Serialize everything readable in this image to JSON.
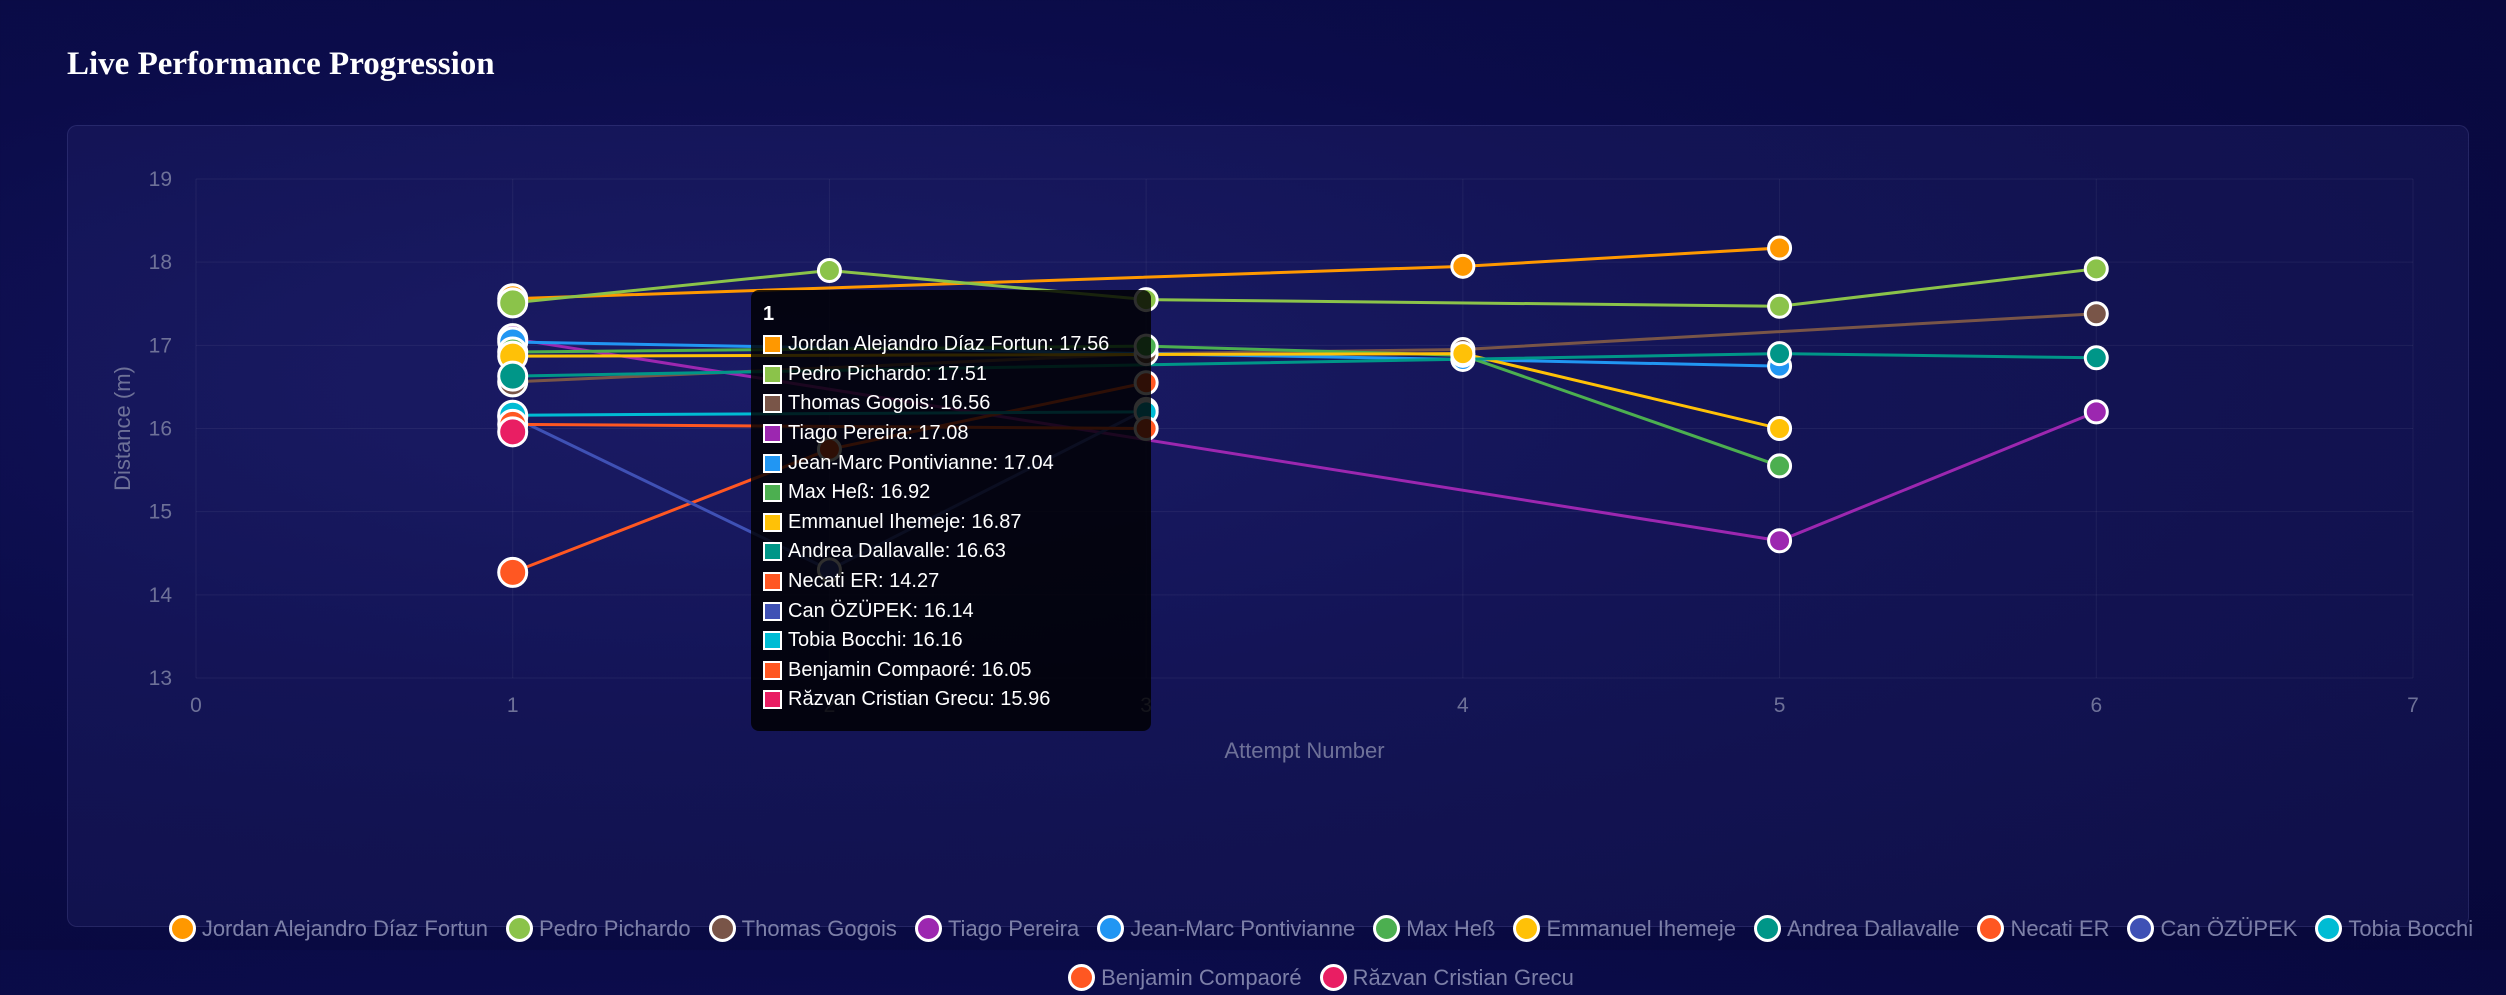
{
  "page": {
    "title": "Live Performance Progression"
  },
  "chart_data": {
    "type": "line",
    "title": "Live Performance Progression",
    "xlabel": "Attempt Number",
    "ylabel": "Distance (m)",
    "xlim": [
      0,
      7
    ],
    "ylim": [
      13,
      19
    ],
    "x_ticks": [
      0,
      1,
      2,
      3,
      4,
      5,
      6,
      7
    ],
    "y_ticks": [
      13,
      14,
      15,
      16,
      17,
      18,
      19
    ],
    "grid": true,
    "legend_position": "bottom",
    "series": [
      {
        "name": "Jordan Alejandro Díaz Fortun",
        "color": "#ff9800",
        "points": [
          [
            1,
            17.56
          ],
          [
            4,
            17.95
          ],
          [
            5,
            18.17
          ]
        ]
      },
      {
        "name": "Pedro Pichardo",
        "color": "#8bc34a",
        "points": [
          [
            1,
            17.51
          ],
          [
            2,
            17.9
          ],
          [
            3,
            17.55
          ],
          [
            5,
            17.47
          ],
          [
            6,
            17.92
          ]
        ]
      },
      {
        "name": "Thomas Gogois",
        "color": "#795548",
        "points": [
          [
            1,
            16.56
          ],
          [
            3,
            16.9
          ],
          [
            4,
            16.95
          ],
          [
            6,
            17.38
          ]
        ]
      },
      {
        "name": "Tiago Pereira",
        "color": "#9c27b0",
        "points": [
          [
            1,
            17.08
          ],
          [
            5,
            14.65
          ],
          [
            6,
            16.2
          ]
        ]
      },
      {
        "name": "Jean-Marc Pontivianne",
        "color": "#2196f3",
        "points": [
          [
            1,
            17.04
          ],
          [
            4,
            16.83
          ],
          [
            5,
            16.75
          ]
        ]
      },
      {
        "name": "Max Heß",
        "color": "#4caf50",
        "points": [
          [
            1,
            16.92
          ],
          [
            3,
            16.99
          ],
          [
            4,
            16.88
          ],
          [
            5,
            15.55
          ]
        ]
      },
      {
        "name": "Emmanuel Ihemeje",
        "color": "#ffc107",
        "points": [
          [
            1,
            16.87
          ],
          [
            4,
            16.9
          ],
          [
            5,
            16.0
          ]
        ]
      },
      {
        "name": "Andrea Dallavalle",
        "color": "#009688",
        "points": [
          [
            1,
            16.63
          ],
          [
            5,
            16.9
          ],
          [
            6,
            16.85
          ]
        ]
      },
      {
        "name": "Necati ER",
        "color": "#ff5722",
        "points": [
          [
            1,
            14.27
          ],
          [
            2,
            15.75
          ],
          [
            3,
            16.55
          ]
        ]
      },
      {
        "name": "Can ÖZÜPEK",
        "color": "#3f51b5",
        "points": [
          [
            1,
            16.14
          ],
          [
            2,
            14.3
          ],
          [
            3,
            16.23
          ]
        ]
      },
      {
        "name": "Tobia Bocchi",
        "color": "#00bcd4",
        "points": [
          [
            1,
            16.16
          ],
          [
            3,
            16.2
          ]
        ]
      },
      {
        "name": "Benjamin Compaoré",
        "color": "#ff5722",
        "points": [
          [
            1,
            16.05
          ],
          [
            3,
            16.0
          ]
        ]
      },
      {
        "name": "Răzvan Cristian Grecu",
        "color": "#e91e63",
        "points": [
          [
            1,
            15.96
          ]
        ]
      }
    ],
    "tooltip": {
      "title": "1",
      "rows": [
        "Jordan Alejandro Díaz Fortun: 17.56",
        "Pedro Pichardo: 17.51",
        "Thomas Gogois: 16.56",
        "Tiago Pereira: 17.08",
        "Jean-Marc Pontivianne: 17.04",
        "Max Heß: 16.92",
        "Emmanuel Ihemeje: 16.87",
        "Andrea Dallavalle: 16.63",
        "Necati ER: 14.27",
        "Can ÖZÜPEK: 16.14",
        "Tobia Bocchi: 16.16",
        "Benjamin Compaoré: 16.05",
        "Răzvan Cristian Grecu: 15.96"
      ]
    }
  }
}
